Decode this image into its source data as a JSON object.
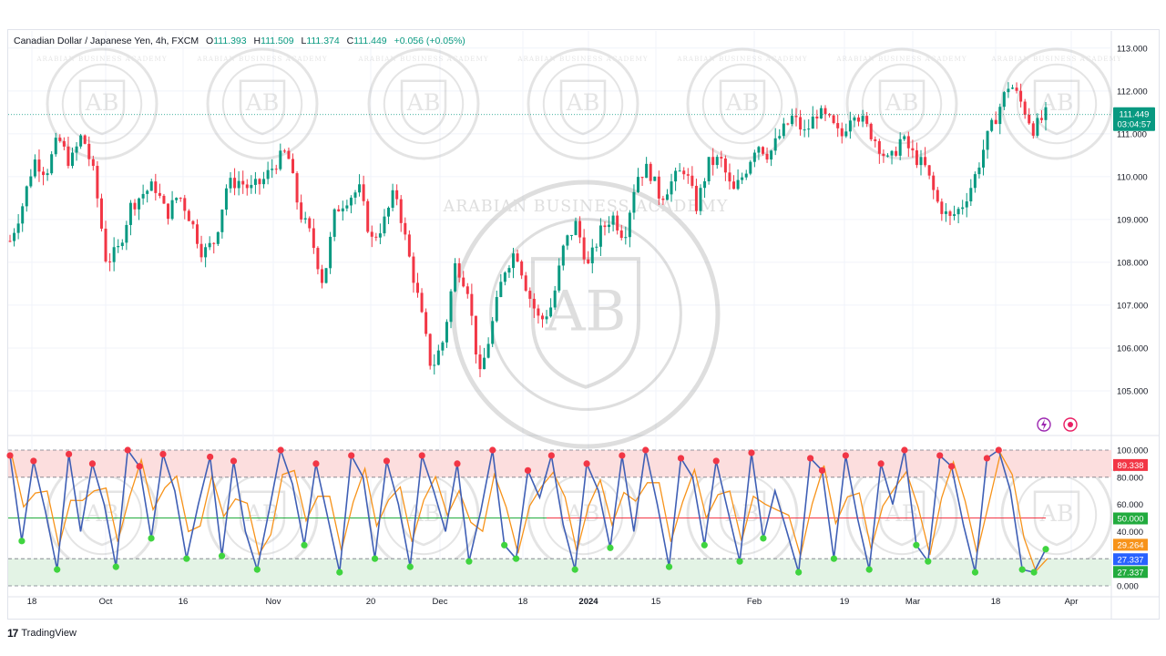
{
  "header": {
    "symbol": "Canadian Dollar / Japanese Yen, 4h, FXCM",
    "open_label": "O",
    "open": "111.393",
    "high_label": "H",
    "high": "111.509",
    "low_label": "L",
    "low": "111.374",
    "close_label": "C",
    "close": "111.449",
    "change": "+0.056 (+0.05%)"
  },
  "price_tag": {
    "price": "111.449",
    "countdown": "03:04:57",
    "color": "#089981"
  },
  "oscillator_tags": [
    {
      "value": "89.338",
      "color": "#f23645"
    },
    {
      "value": "50.000",
      "color": "#22ab3e"
    },
    {
      "value": "29.264",
      "color": "#f7931a"
    },
    {
      "value": "27.337",
      "color": "#2962ff"
    },
    {
      "value": "27.337",
      "color": "#22ab3e"
    }
  ],
  "footer": {
    "brand": "TradingView"
  },
  "watermark": {
    "text_top": "ARABIAN BUSINESS ACADEMY",
    "monogram": "AB"
  },
  "icons": [
    "lightning-icon",
    "record-icon"
  ],
  "colors": {
    "up": "#089981",
    "down": "#f23645",
    "k_line": "#3f5fb5",
    "d_line": "#f7931a",
    "overbought_zone": "#fcdede",
    "oversold_zone": "#e3f3e5"
  },
  "chart_data": [
    {
      "type": "candlestick",
      "x_tick_labels": [
        "18",
        "Oct",
        "16",
        "Nov",
        "20",
        "Dec",
        "18",
        "2024",
        "15",
        "Feb",
        "19",
        "Mar",
        "18",
        "Apr"
      ],
      "y_tick_labels": [
        "113.000",
        "112.000",
        "111.000",
        "110.000",
        "109.000",
        "108.000",
        "107.000",
        "106.000",
        "105.000"
      ],
      "ylim": [
        104.0,
        113.4
      ],
      "last_price": 111.449,
      "close_path": [
        108.5,
        109.3,
        110.4,
        110.1,
        110.9,
        110.3,
        111.0,
        110.0,
        108.0,
        108.3,
        109.3,
        109.6,
        109.8,
        109.1,
        109.6,
        109.0,
        108.2,
        108.5,
        109.8,
        109.9,
        109.7,
        109.9,
        110.3,
        110.6,
        109.2,
        108.6,
        107.5,
        109.2,
        109.5,
        109.7,
        108.5,
        108.9,
        109.7,
        108.3,
        107.0,
        105.5,
        106.2,
        108.0,
        107.4,
        105.3,
        106.5,
        107.8,
        108.3,
        107.3,
        106.6,
        107.0,
        108.4,
        108.9,
        107.9,
        108.7,
        109.1,
        108.6,
        110.0,
        110.2,
        109.5,
        109.9,
        110.2,
        109.3,
        110.3,
        110.4,
        109.6,
        110.1,
        110.8,
        110.5,
        111.0,
        111.4,
        111.0,
        111.5,
        111.3,
        110.9,
        111.6,
        111.2,
        110.8,
        110.3,
        110.9,
        110.5,
        110.2,
        109.4,
        109.0,
        109.3,
        109.9,
        110.8,
        111.5,
        112.2,
        111.7,
        111.1,
        111.45
      ]
    },
    {
      "type": "line",
      "series": [
        {
          "values": [
            96,
            33,
            92,
            55,
            12,
            97,
            40,
            90,
            60,
            14,
            100,
            88,
            35,
            97,
            70,
            20,
            60,
            95,
            22,
            92,
            40,
            12,
            55,
            100,
            75,
            30,
            90,
            50,
            10,
            96,
            80,
            20,
            92,
            60,
            14,
            96,
            70,
            40,
            90,
            18,
            55,
            100,
            30,
            20,
            85,
            65,
            96,
            45,
            12,
            90,
            70,
            28,
            96,
            40,
            100,
            60,
            14,
            94,
            80,
            30,
            92,
            55,
            18,
            98,
            35,
            70,
            40,
            10,
            94,
            85,
            20,
            96,
            50,
            12,
            90,
            60,
            100,
            30,
            18,
            96,
            88,
            45,
            10,
            94,
            100,
            70,
            12,
            10,
            27
          ]
        }
      ],
      "ylim": [
        0,
        100
      ],
      "y_tick_labels": [
        "100.000",
        "80.000",
        "60.000",
        "40.000",
        "0.000"
      ],
      "levels": [
        100,
        80,
        50,
        20,
        0
      ]
    }
  ]
}
